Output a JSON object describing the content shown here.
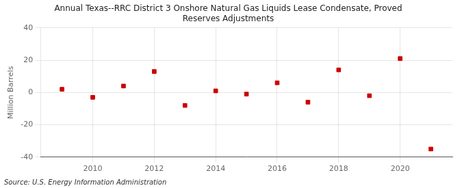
{
  "chart_data": {
    "type": "scatter",
    "title": "Annual Texas--RRC District 3 Onshore Natural Gas Liquids Lease Condensate, Proved\nReserves Adjustments",
    "ylabel": "Million Barrels",
    "x": [
      2009,
      2010,
      2011,
      2012,
      2013,
      2014,
      2015,
      2016,
      2017,
      2018,
      2019,
      2020,
      2021
    ],
    "values": [
      2.0,
      -3.0,
      4.0,
      13.0,
      -8.0,
      1.0,
      -1.0,
      6.0,
      -6.0,
      14.0,
      -2.0,
      21.0,
      -35.0
    ],
    "color": "#cc0000",
    "marker": "square",
    "xlim": [
      2008.3,
      2021.7
    ],
    "xticks": [
      2010,
      2012,
      2014,
      2016,
      2018,
      2020
    ],
    "ylim": [
      -40,
      40
    ],
    "yticks": [
      -40,
      -20,
      0,
      20,
      40
    ],
    "grid": true,
    "annotations": [
      "Source: U.S. Energy Information Administration"
    ]
  }
}
